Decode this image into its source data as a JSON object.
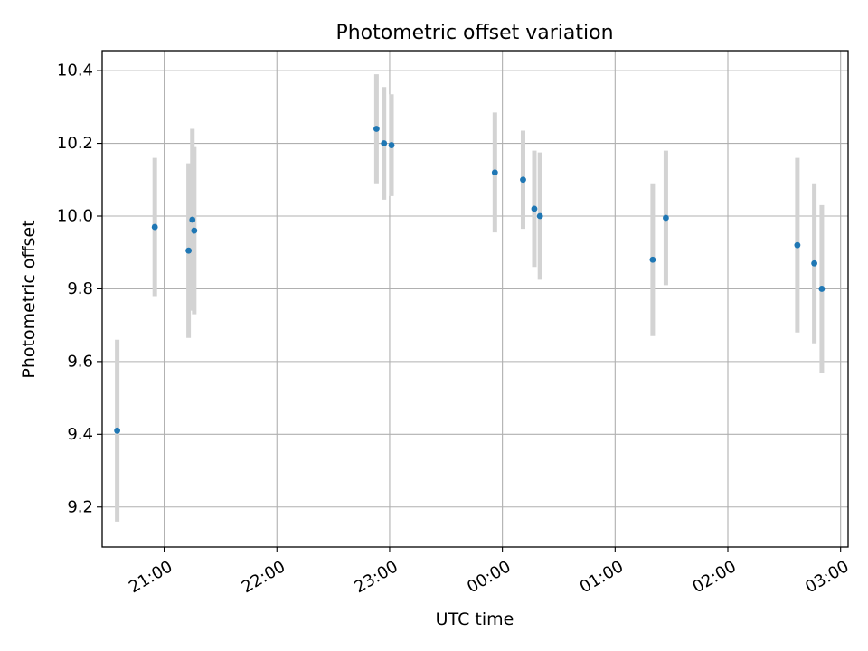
{
  "chart_data": {
    "type": "scatter",
    "title": "Photometric offset variation",
    "xlabel": "UTC time",
    "ylabel": "Photometric offset",
    "x_ticks": [
      "21:00",
      "22:00",
      "23:00",
      "00:00",
      "01:00",
      "02:00",
      "03:00"
    ],
    "y_ticks": [
      "9.2",
      "9.4",
      "9.6",
      "9.8",
      "10.0",
      "10.2",
      "10.4"
    ],
    "grid": true,
    "point_color": "#1f77b4",
    "errorbar_color": "#d3d3d3",
    "points": [
      {
        "time": "20:35",
        "y": 9.41,
        "yerr": 0.25
      },
      {
        "time": "20:55",
        "y": 9.97,
        "yerr": 0.19
      },
      {
        "time": "21:13",
        "y": 9.905,
        "yerr": 0.24
      },
      {
        "time": "21:15",
        "y": 9.99,
        "yerr": 0.25
      },
      {
        "time": "21:16",
        "y": 9.96,
        "yerr": 0.23
      },
      {
        "time": "22:53",
        "y": 10.24,
        "yerr": 0.15
      },
      {
        "time": "22:57",
        "y": 10.2,
        "yerr": 0.155
      },
      {
        "time": "23:01",
        "y": 10.195,
        "yerr": 0.14
      },
      {
        "time": "23:56",
        "y": 10.12,
        "yerr": 0.165
      },
      {
        "time": "00:11",
        "y": 10.1,
        "yerr": 0.135
      },
      {
        "time": "00:17",
        "y": 10.02,
        "yerr": 0.16
      },
      {
        "time": "00:20",
        "y": 10.0,
        "yerr": 0.175
      },
      {
        "time": "01:20",
        "y": 9.88,
        "yerr": 0.21
      },
      {
        "time": "01:27",
        "y": 9.995,
        "yerr": 0.185
      },
      {
        "time": "02:37",
        "y": 9.92,
        "yerr": 0.24
      },
      {
        "time": "02:46",
        "y": 9.87,
        "yerr": 0.22
      },
      {
        "time": "02:50",
        "y": 9.8,
        "yerr": 0.23
      }
    ],
    "xlim": [
      "20:27",
      "03:04"
    ],
    "ylim": [
      9.09,
      10.455
    ]
  }
}
